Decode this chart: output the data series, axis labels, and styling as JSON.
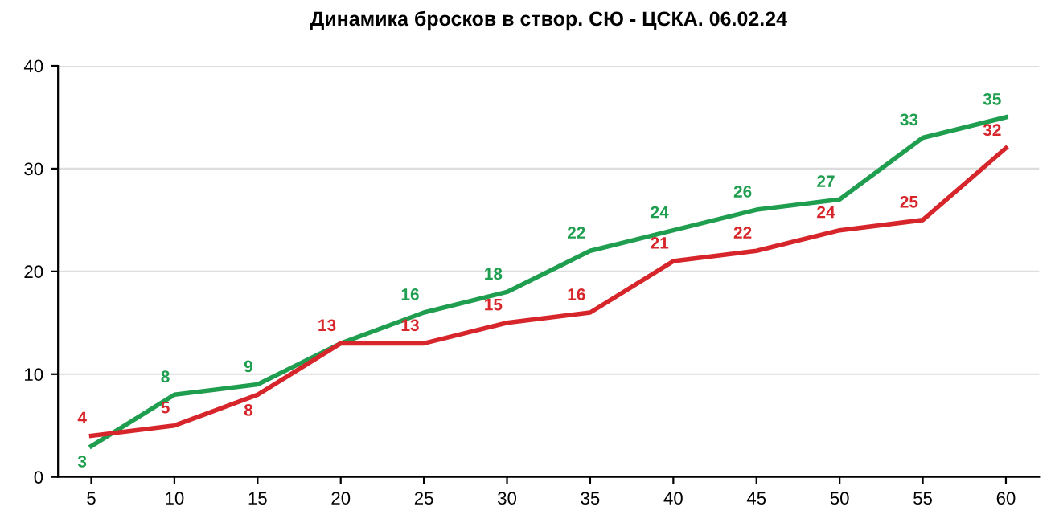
{
  "chart_data": {
    "type": "line",
    "title": "Динамика бросков в створ. СЮ - ЦСКА. 06.02.24",
    "x": [
      5,
      10,
      15,
      20,
      25,
      30,
      35,
      40,
      45,
      50,
      55,
      60
    ],
    "series": [
      {
        "color": "#1f9e4f",
        "values": [
          3,
          8,
          9,
          13,
          16,
          18,
          22,
          24,
          26,
          27,
          33,
          35
        ],
        "value_labels": [
          "3",
          "8",
          "9",
          null,
          "16",
          "18",
          "22",
          "24",
          "26",
          "27",
          "33",
          "35"
        ]
      },
      {
        "color": "#d7262b",
        "values": [
          4,
          5,
          8,
          13,
          13,
          15,
          16,
          21,
          22,
          24,
          25,
          32
        ]
      }
    ],
    "xlim": [
      3,
      62
    ],
    "xticks": [
      5,
      10,
      15,
      20,
      25,
      30,
      35,
      40,
      45,
      50,
      55,
      60
    ],
    "ylim": [
      0,
      40
    ],
    "yticks": [
      0,
      10,
      20,
      30,
      40
    ],
    "grid": "y",
    "data_labels": true,
    "marker": "none",
    "line_style": "solid",
    "legend": false
  }
}
